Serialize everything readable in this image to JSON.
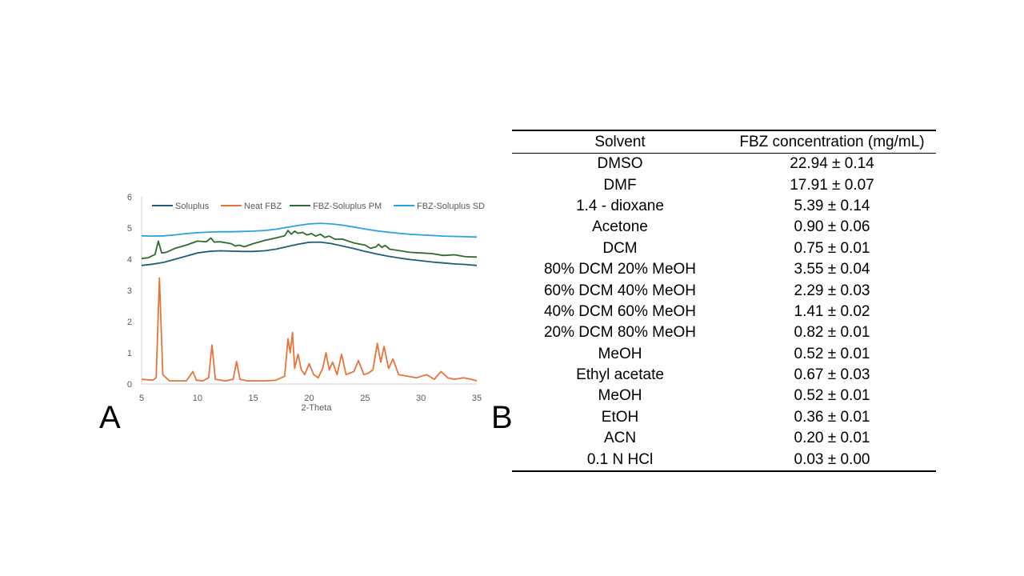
{
  "panels": {
    "a_label": "A",
    "b_label": "B"
  },
  "chart_data": {
    "type": "line",
    "xlabel": "2-Theta",
    "ylabel": "",
    "xlim": [
      5,
      35
    ],
    "ylim": [
      0,
      6
    ],
    "xticks": [
      5,
      10,
      15,
      20,
      25,
      30,
      35
    ],
    "yticks": [
      0,
      1,
      2,
      3,
      4,
      5,
      6
    ],
    "legend_position": "top",
    "grid": false,
    "series": [
      {
        "name": "Soluplus",
        "color": "#1f5c7a",
        "x": [
          5,
          6,
          7,
          8,
          9,
          10,
          11,
          12,
          13,
          14,
          15,
          16,
          17,
          18,
          19,
          20,
          21,
          22,
          23,
          24,
          25,
          26,
          27,
          28,
          29,
          30,
          31,
          32,
          33,
          34,
          35
        ],
        "y": [
          3.8,
          3.84,
          3.9,
          4.0,
          4.1,
          4.2,
          4.25,
          4.27,
          4.26,
          4.25,
          4.25,
          4.27,
          4.32,
          4.4,
          4.48,
          4.54,
          4.55,
          4.5,
          4.42,
          4.34,
          4.25,
          4.17,
          4.1,
          4.04,
          3.99,
          3.95,
          3.91,
          3.88,
          3.85,
          3.83,
          3.8
        ]
      },
      {
        "name": "Neat FBZ",
        "color": "#e8733a",
        "x": [
          5,
          6,
          6.3,
          6.6,
          6.9,
          7.5,
          9,
          9.6,
          9.9,
          10.5,
          11,
          11.3,
          11.6,
          12.5,
          13.2,
          13.5,
          13.8,
          14.5,
          16,
          17,
          17.8,
          18.1,
          18.3,
          18.5,
          18.7,
          19,
          19.3,
          19.6,
          20,
          20.4,
          20.8,
          21.2,
          21.5,
          21.8,
          22.1,
          22.5,
          22.9,
          23.3,
          24,
          24.4,
          24.9,
          25.3,
          25.7,
          26.1,
          26.4,
          26.7,
          27.1,
          27.5,
          28,
          28.8,
          29.6,
          30.5,
          31.2,
          31.8,
          32.4,
          33,
          33.8,
          34.5,
          35
        ],
        "y": [
          0.15,
          0.12,
          0.2,
          3.4,
          0.3,
          0.1,
          0.1,
          0.4,
          0.12,
          0.1,
          0.2,
          1.25,
          0.15,
          0.1,
          0.15,
          0.72,
          0.15,
          0.1,
          0.1,
          0.12,
          0.25,
          1.45,
          1.0,
          1.65,
          0.5,
          0.95,
          0.45,
          0.3,
          0.65,
          0.3,
          0.2,
          0.5,
          1.0,
          0.45,
          0.7,
          0.3,
          0.95,
          0.3,
          0.4,
          0.75,
          0.3,
          0.35,
          0.45,
          1.3,
          0.7,
          1.2,
          0.5,
          0.8,
          0.3,
          0.25,
          0.2,
          0.3,
          0.15,
          0.4,
          0.2,
          0.15,
          0.2,
          0.15,
          0.1
        ]
      },
      {
        "name": "FBZ-Soluplus PM",
        "color": "#2e6b2e",
        "x": [
          5,
          5.6,
          6.2,
          6.5,
          6.8,
          7.2,
          8,
          9,
          10,
          10.8,
          11.2,
          11.5,
          12,
          13,
          13.4,
          13.7,
          14.2,
          15,
          16,
          17,
          17.8,
          18.1,
          18.4,
          18.7,
          19,
          19.4,
          19.8,
          20.2,
          20.6,
          21,
          21.4,
          21.8,
          22.3,
          23,
          24,
          25,
          25.5,
          26,
          26.2,
          26.5,
          26.8,
          27.2,
          28,
          29,
          30,
          31,
          32,
          33,
          34,
          35
        ],
        "y": [
          4.02,
          4.05,
          4.15,
          4.58,
          4.2,
          4.22,
          4.35,
          4.45,
          4.58,
          4.56,
          4.68,
          4.55,
          4.56,
          4.5,
          4.42,
          4.45,
          4.4,
          4.5,
          4.6,
          4.68,
          4.75,
          4.92,
          4.8,
          4.9,
          4.83,
          4.86,
          4.78,
          4.82,
          4.74,
          4.8,
          4.7,
          4.74,
          4.64,
          4.64,
          4.52,
          4.45,
          4.35,
          4.4,
          4.48,
          4.38,
          4.44,
          4.32,
          4.28,
          4.22,
          4.2,
          4.18,
          4.12,
          4.14,
          4.08,
          4.07
        ]
      },
      {
        "name": "FBZ-Soluplus SD",
        "color": "#29a3e0",
        "x": [
          5,
          6,
          7,
          8,
          9,
          10,
          11,
          12,
          13,
          14,
          15,
          16,
          17,
          18,
          19,
          20,
          21,
          22,
          23,
          24,
          25,
          26,
          27,
          28,
          29,
          30,
          31,
          32,
          33,
          34,
          35
        ],
        "y": [
          4.75,
          4.74,
          4.75,
          4.78,
          4.82,
          4.85,
          4.87,
          4.88,
          4.88,
          4.89,
          4.9,
          4.92,
          4.96,
          5.02,
          5.08,
          5.13,
          5.15,
          5.13,
          5.09,
          5.03,
          4.97,
          4.91,
          4.87,
          4.83,
          4.8,
          4.78,
          4.76,
          4.74,
          4.73,
          4.72,
          4.71
        ]
      }
    ]
  },
  "table": {
    "headers": [
      "Solvent",
      "FBZ concentration (mg/mL)"
    ],
    "rows": [
      [
        "DMSO",
        "22.94 ± 0.14"
      ],
      [
        "DMF",
        "17.91 ± 0.07"
      ],
      [
        "1.4 - dioxane",
        "5.39 ± 0.14"
      ],
      [
        "Acetone",
        "0.90 ± 0.06"
      ],
      [
        "DCM",
        "0.75 ± 0.01"
      ],
      [
        "80% DCM 20% MeOH",
        "3.55 ± 0.04"
      ],
      [
        "60% DCM 40% MeOH",
        "2.29 ± 0.03"
      ],
      [
        "40% DCM 60% MeOH",
        "1.41 ± 0.02"
      ],
      [
        "20% DCM 80% MeOH",
        "0.82 ± 0.01"
      ],
      [
        "MeOH",
        "0.52 ± 0.01"
      ],
      [
        "Ethyl acetate",
        "0.67 ± 0.03"
      ],
      [
        "MeOH",
        "0.52 ± 0.01"
      ],
      [
        "EtOH",
        "0.36 ± 0.01"
      ],
      [
        "ACN",
        "0.20 ± 0.01"
      ],
      [
        "0.1 N HCl",
        "0.03 ± 0.00"
      ]
    ]
  }
}
